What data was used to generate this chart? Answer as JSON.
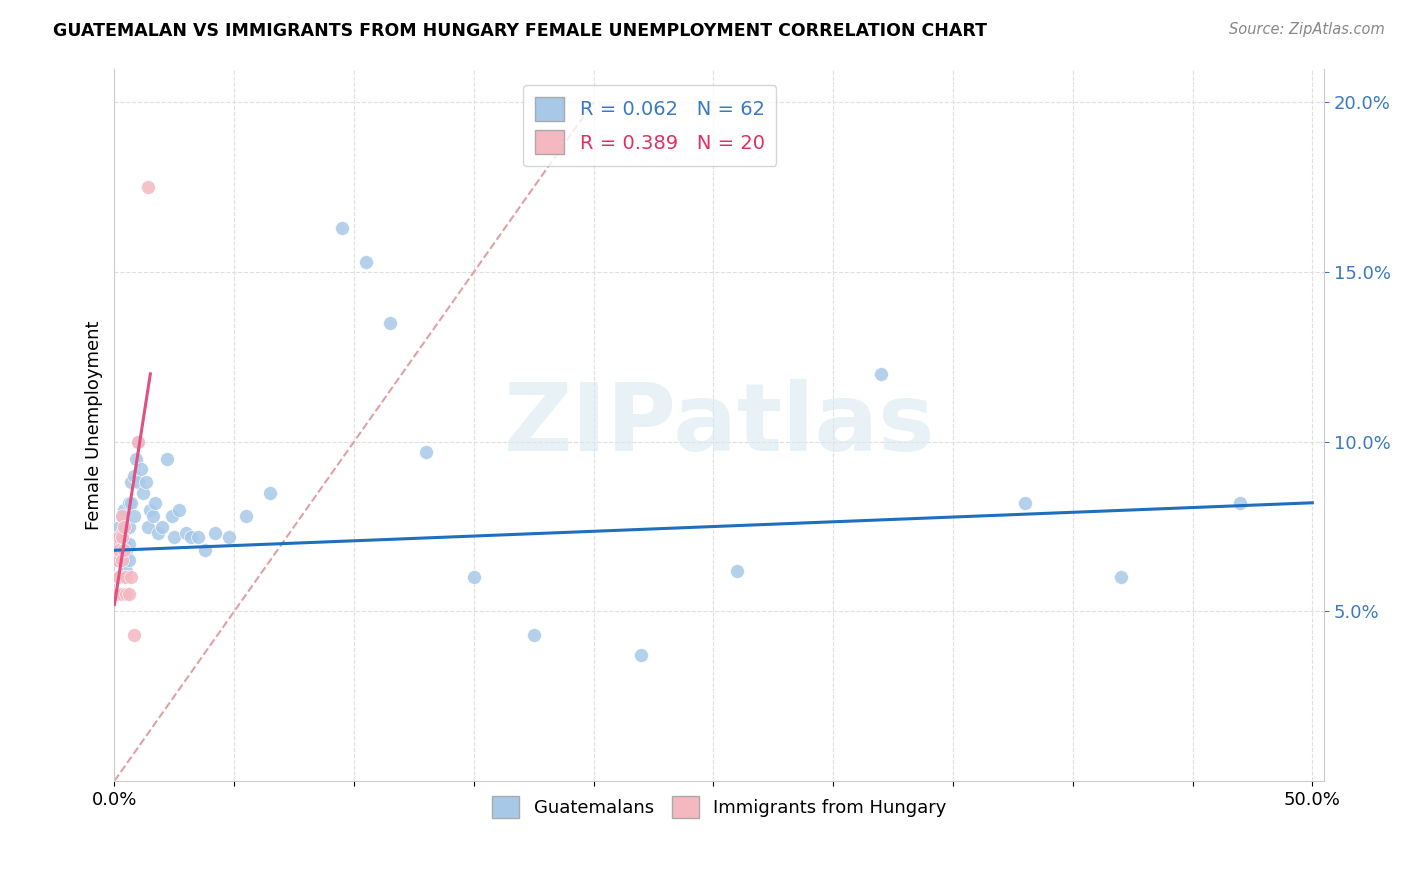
{
  "title": "GUATEMALAN VS IMMIGRANTS FROM HUNGARY FEMALE UNEMPLOYMENT CORRELATION CHART",
  "source": "Source: ZipAtlas.com",
  "ylabel": "Female Unemployment",
  "ylim": [
    0.0,
    0.21
  ],
  "xlim": [
    0.0,
    0.505
  ],
  "yticks": [
    0.05,
    0.1,
    0.15,
    0.2
  ],
  "ytick_labels": [
    "5.0%",
    "10.0%",
    "15.0%",
    "20.0%"
  ],
  "xticks": [
    0.0,
    0.05,
    0.1,
    0.15,
    0.2,
    0.25,
    0.3,
    0.35,
    0.4,
    0.45,
    0.5
  ],
  "watermark": "ZIPatlas",
  "guatemalans_color": "#a8c8e8",
  "hungary_color": "#f4b8c0",
  "blue_line_color": "#1f6fbf",
  "pink_line_color": "#e05080",
  "diag_line_color": "#d0a0a8",
  "background_color": "#ffffff",
  "grid_color": "#e0e0e0",
  "guatemalans_x": [
    0.001,
    0.001,
    0.001,
    0.001,
    0.002,
    0.002,
    0.002,
    0.002,
    0.003,
    0.003,
    0.003,
    0.003,
    0.004,
    0.004,
    0.004,
    0.005,
    0.005,
    0.005,
    0.006,
    0.006,
    0.006,
    0.006,
    0.007,
    0.007,
    0.008,
    0.008,
    0.009,
    0.01,
    0.01,
    0.011,
    0.012,
    0.013,
    0.014,
    0.015,
    0.016,
    0.017,
    0.018,
    0.02,
    0.022,
    0.024,
    0.025,
    0.027,
    0.03,
    0.032,
    0.035,
    0.038,
    0.042,
    0.048,
    0.055,
    0.065,
    0.095,
    0.105,
    0.115,
    0.13,
    0.15,
    0.175,
    0.22,
    0.26,
    0.32,
    0.38,
    0.42,
    0.47
  ],
  "guatemalans_y": [
    0.072,
    0.068,
    0.065,
    0.06,
    0.075,
    0.07,
    0.065,
    0.06,
    0.078,
    0.073,
    0.068,
    0.06,
    0.08,
    0.07,
    0.065,
    0.075,
    0.068,
    0.062,
    0.082,
    0.075,
    0.07,
    0.065,
    0.088,
    0.082,
    0.09,
    0.078,
    0.095,
    0.1,
    0.088,
    0.092,
    0.085,
    0.088,
    0.075,
    0.08,
    0.078,
    0.082,
    0.073,
    0.075,
    0.095,
    0.078,
    0.072,
    0.08,
    0.073,
    0.072,
    0.072,
    0.068,
    0.073,
    0.072,
    0.078,
    0.085,
    0.163,
    0.153,
    0.135,
    0.097,
    0.06,
    0.043,
    0.037,
    0.062,
    0.12,
    0.082,
    0.06,
    0.082
  ],
  "hungary_x": [
    0.001,
    0.001,
    0.001,
    0.002,
    0.002,
    0.002,
    0.003,
    0.003,
    0.003,
    0.003,
    0.004,
    0.004,
    0.004,
    0.005,
    0.005,
    0.006,
    0.007,
    0.008,
    0.01,
    0.014
  ],
  "hungary_y": [
    0.065,
    0.06,
    0.055,
    0.072,
    0.068,
    0.06,
    0.078,
    0.072,
    0.065,
    0.055,
    0.075,
    0.068,
    0.06,
    0.06,
    0.055,
    0.055,
    0.06,
    0.043,
    0.1,
    0.175
  ]
}
